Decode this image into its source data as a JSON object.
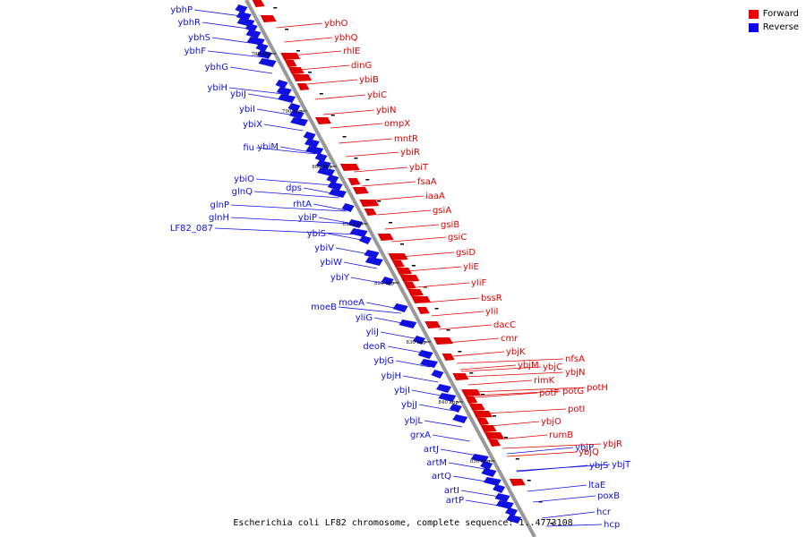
{
  "legend": {
    "forward_label": "Forward",
    "reverse_label": "Reverse",
    "forward_color": "#ee0000",
    "reverse_color": "#1100ee"
  },
  "caption": "Escherichia coli LF82 chromosome, complete sequence: 1..4773108",
  "colors": {
    "forward": "#e00000",
    "reverse": "#1010e0",
    "backbone": "#999999"
  },
  "ticks": [
    "780 kbp",
    "790 kbp",
    "800 kbp",
    "810 kbp",
    "820 kbp",
    "830 kbp",
    "840 kbp",
    "850 kbp"
  ],
  "reverse_genes": [
    "ybhP",
    "ybhR",
    "ybhS",
    "ybhF",
    "ybhG",
    "ybiH",
    "ybiJ",
    "ybiI",
    "ybiX",
    "fiu",
    "ybiM",
    "ybiO",
    "glnQ",
    "dps",
    "glnP",
    "rhtA",
    "glnH",
    "ybiP",
    "LF82_087",
    "ybiS",
    "ybiV",
    "ybiW",
    "ybiY",
    "moeB",
    "moeA",
    "yliG",
    "yliJ",
    "deoR",
    "ybjG",
    "ybjH",
    "ybjI",
    "ybjJ",
    "ybjL",
    "grxA",
    "artJ",
    "artM",
    "artQ",
    "artI",
    "artP",
    "ybjP",
    "ybjS",
    "ybjT",
    "ltaE",
    "poxB",
    "hcr",
    "hcp"
  ],
  "forward_genes": [
    "ybhO",
    "ybhQ",
    "rhlE",
    "dinG",
    "ybiB",
    "ybiC",
    "ybiN",
    "ompX",
    "mntR",
    "ybiR",
    "ybiT",
    "fsaA",
    "iaaA",
    "gsiA",
    "gsiB",
    "gsiC",
    "gsiD",
    "yliE",
    "yliF",
    "bssR",
    "yliI",
    "dacC",
    "cmr",
    "ybjK",
    "nfsA",
    "ybjM",
    "ybjC",
    "ybjN",
    "rimK",
    "potF",
    "potG",
    "potH",
    "potI",
    "ybjO",
    "rumB",
    "ybjQ",
    "ybjR"
  ]
}
